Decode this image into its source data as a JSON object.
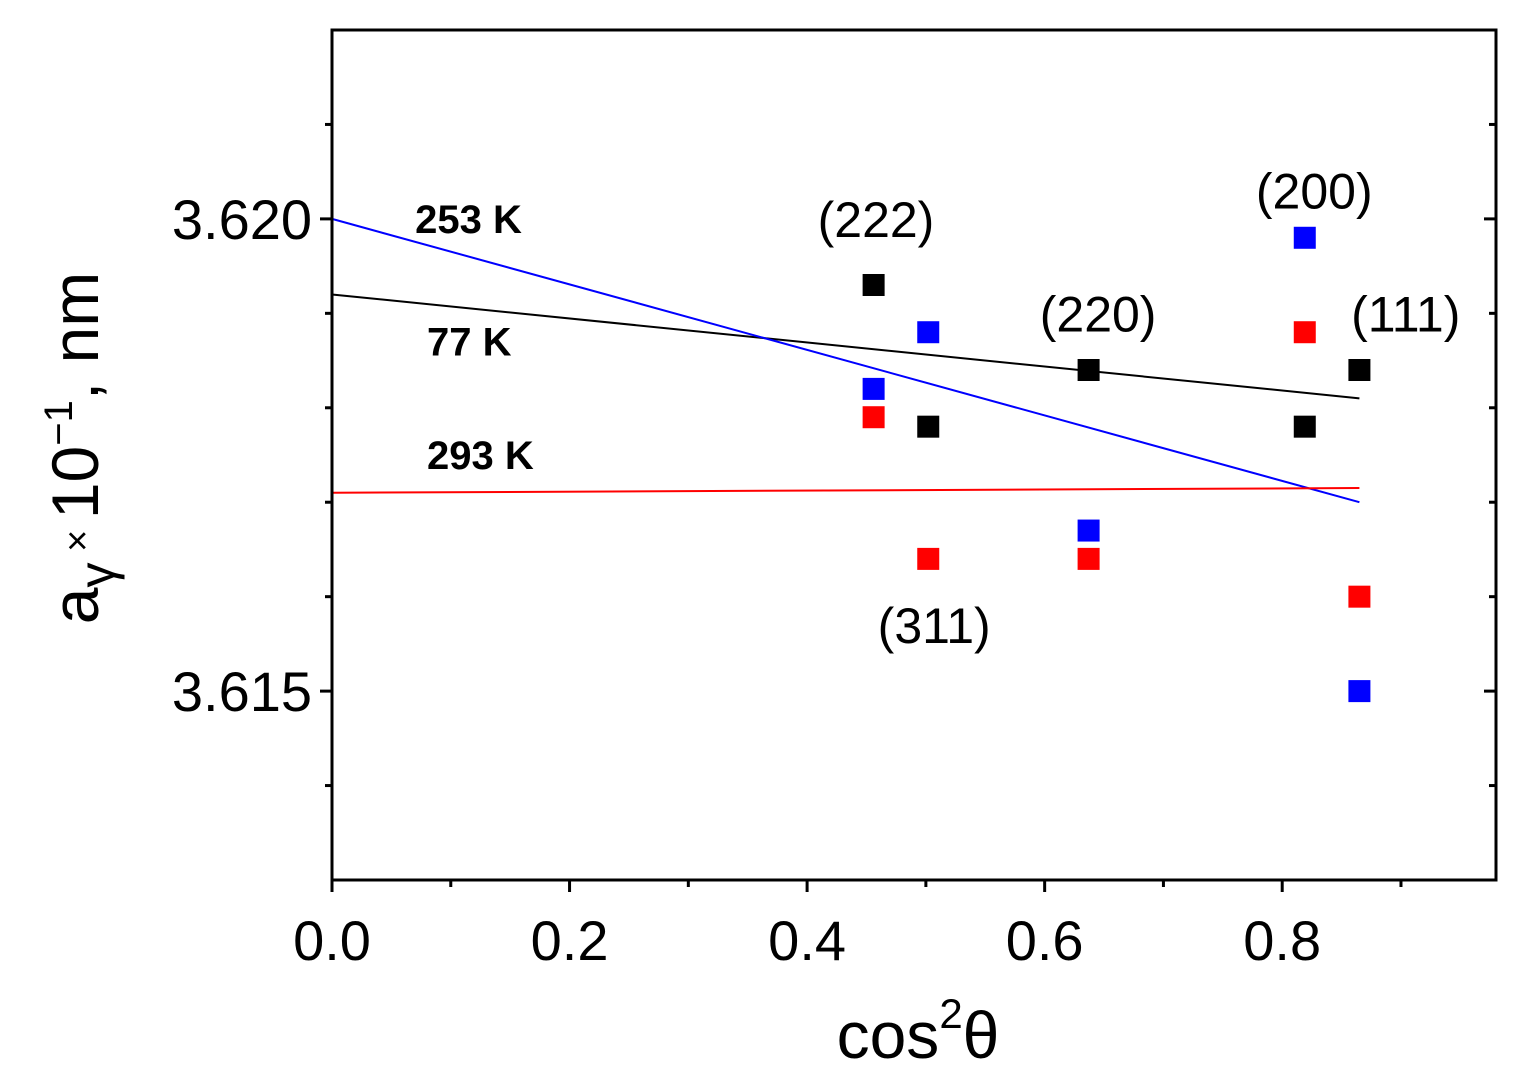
{
  "chart_data": {
    "type": "scatter",
    "title": "",
    "xlabel": "cos²θ",
    "xlabel_parts": {
      "base": "cos",
      "sup": "2",
      "tail": "θ"
    },
    "ylabel": "aγ ×10⁻¹, nm",
    "ylabel_parts": {
      "a": "a",
      "sub": "γ",
      "times": " × ",
      "ten": "10",
      "exp": "−1",
      "unit": ", nm"
    },
    "xlim": [
      0.0,
      0.98
    ],
    "ylim": [
      3.613,
      3.622
    ],
    "x_ticks": [
      0.0,
      0.2,
      0.4,
      0.6,
      0.8
    ],
    "x_tick_labels": [
      "0.0",
      "0.2",
      "0.4",
      "0.6",
      "0.8"
    ],
    "x_minor_ticks": [
      0.1,
      0.3,
      0.5,
      0.7,
      0.9
    ],
    "y_ticks": [
      3.615,
      3.62
    ],
    "y_tick_labels": [
      "3.615",
      "3.620"
    ],
    "y_minor_ticks": [
      3.614,
      3.616,
      3.617,
      3.618,
      3.619,
      3.621
    ],
    "series": [
      {
        "name": "77 K",
        "color": "#000000",
        "points": [
          {
            "x": 0.456,
            "y": 3.6193
          },
          {
            "x": 0.502,
            "y": 3.6178
          },
          {
            "x": 0.637,
            "y": 3.6184
          },
          {
            "x": 0.819,
            "y": 3.6178
          },
          {
            "x": 0.865,
            "y": 3.6184
          }
        ],
        "fit": [
          {
            "x": 0.0,
            "y": 3.6192
          },
          {
            "x": 0.865,
            "y": 3.6181
          }
        ]
      },
      {
        "name": "253 K",
        "color": "#0000ff",
        "points": [
          {
            "x": 0.456,
            "y": 3.6182
          },
          {
            "x": 0.502,
            "y": 3.6188
          },
          {
            "x": 0.637,
            "y": 3.6167
          },
          {
            "x": 0.819,
            "y": 3.6198
          },
          {
            "x": 0.865,
            "y": 3.615
          }
        ],
        "fit": [
          {
            "x": 0.0,
            "y": 3.62
          },
          {
            "x": 0.865,
            "y": 3.617
          }
        ]
      },
      {
        "name": "293 K",
        "color": "#ff0000",
        "points": [
          {
            "x": 0.456,
            "y": 3.6179
          },
          {
            "x": 0.502,
            "y": 3.6164
          },
          {
            "x": 0.637,
            "y": 3.6164
          },
          {
            "x": 0.819,
            "y": 3.6188
          },
          {
            "x": 0.865,
            "y": 3.616
          }
        ],
        "fit": [
          {
            "x": 0.0,
            "y": 3.6171
          },
          {
            "x": 0.865,
            "y": 3.61715
          }
        ]
      }
    ],
    "series_labels": [
      {
        "text": "253 K",
        "x": 0.07,
        "y": 3.62
      },
      {
        "text": "77 K",
        "x": 0.08,
        "y": 3.6187
      },
      {
        "text": "293 K",
        "x": 0.08,
        "y": 3.6175
      }
    ],
    "peak_labels": [
      {
        "text": "(222)",
        "x": 0.458,
        "y": 3.62
      },
      {
        "text": "(220)",
        "x": 0.645,
        "y": 3.619
      },
      {
        "text": "(200)",
        "x": 0.827,
        "y": 3.6203
      },
      {
        "text": "(111)",
        "x": 0.904,
        "y": 3.619
      },
      {
        "text": "(311)",
        "x": 0.507,
        "y": 3.6157
      }
    ]
  }
}
